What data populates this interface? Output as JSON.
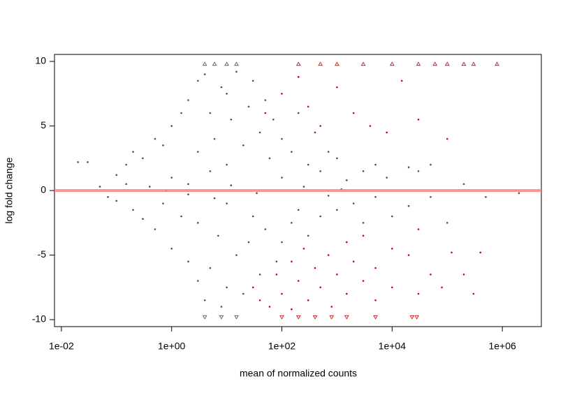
{
  "chart_data": {
    "type": "scatter",
    "x_label": "mean of normalized counts",
    "y_label": "log fold change",
    "xlog": true,
    "xlim": [
      0.0075,
      5100000
    ],
    "ylim": [
      -10.54,
      10.54
    ],
    "xticks": [
      {
        "value": 0.01,
        "label": "1e-02"
      },
      {
        "value": 1,
        "label": "1e+00"
      },
      {
        "value": 100,
        "label": "1e+02"
      },
      {
        "value": 10000,
        "label": "1e+04"
      },
      {
        "value": 1000000,
        "label": "1e+06"
      }
    ],
    "yticks": [
      -10,
      -5,
      0,
      5,
      10
    ],
    "hline": 0,
    "hline_color": "#ff7f7f",
    "series": [
      {
        "color": "#4d4d4d",
        "marker": "dot",
        "x": [
          0.02,
          0.03,
          0.05,
          0.07,
          0.1,
          0.1,
          0.15,
          0.15,
          0.2,
          0.2,
          0.3,
          0.3,
          0.4,
          0.5,
          0.5,
          0.7,
          0.7,
          1,
          1,
          1,
          1.5,
          1.5,
          2,
          2,
          2,
          3,
          3,
          3,
          3,
          4,
          4,
          5,
          5,
          5,
          6,
          7,
          8,
          8,
          10,
          10,
          10,
          10,
          12,
          15,
          15,
          20,
          20,
          25,
          25,
          30,
          30,
          40,
          40,
          50,
          50,
          60,
          70,
          80,
          100,
          100,
          100,
          150,
          150,
          200,
          200,
          300,
          300,
          400,
          500,
          500,
          700,
          1000,
          1000,
          1500,
          2000,
          3000,
          3000,
          5000,
          5000,
          8000,
          10000,
          20000,
          20000,
          30000,
          50000,
          50000,
          100000,
          200000,
          500000,
          2000000,
          0.8,
          2,
          6,
          12,
          35,
          250,
          700,
          1200
        ],
        "values": [
          2.2,
          2.2,
          0.3,
          -0.5,
          1.2,
          -0.8,
          0.5,
          2.0,
          -1.5,
          3.0,
          2.5,
          -2.2,
          0.3,
          4.0,
          -3.0,
          -1.0,
          3.5,
          5.0,
          -4.5,
          1.0,
          -2.0,
          6.0,
          7.0,
          -5.5,
          0.5,
          8.5,
          -7.0,
          3.0,
          -2.5,
          9.0,
          -8.5,
          6.0,
          -6.0,
          1.5,
          4.0,
          -3.5,
          8.0,
          -9.0,
          7.5,
          -7.5,
          2.0,
          -1.0,
          5.5,
          -5.0,
          9.2,
          3.5,
          -8.0,
          6.5,
          -4.0,
          8.5,
          -2.0,
          4.5,
          -6.5,
          7.0,
          -3.0,
          2.5,
          5.5,
          -5.5,
          4.0,
          -4.0,
          1.0,
          3.0,
          -2.5,
          6.0,
          -1.5,
          2.0,
          -3.5,
          4.5,
          1.5,
          -2.0,
          3.0,
          2.5,
          -1.5,
          0.8,
          -1.0,
          1.5,
          -2.5,
          2.0,
          -0.5,
          1.0,
          -2.0,
          1.8,
          -1.2,
          1.5,
          -0.5,
          2.0,
          -2.5,
          0.5,
          -0.5,
          -0.2,
          0.0,
          -0.3,
          -0.6,
          0.4,
          -0.2,
          0.3,
          -0.4,
          0.1
        ]
      },
      {
        "color": "#cc0000",
        "marker": "dot",
        "x": [
          30,
          40,
          50,
          60,
          80,
          100,
          100,
          150,
          150,
          200,
          200,
          250,
          300,
          300,
          400,
          500,
          500,
          700,
          800,
          1000,
          1000,
          1500,
          1500,
          2000,
          2000,
          3000,
          3000,
          4000,
          5000,
          5000,
          8000,
          10000,
          10000,
          15000,
          20000,
          30000,
          30000,
          50000,
          80000,
          100000,
          120000,
          200000,
          300000,
          400000,
          30000
        ],
        "values": [
          -7.5,
          -8.5,
          6.0,
          -9.0,
          -6.5,
          -8.0,
          7.5,
          -5.5,
          -9.2,
          -7.0,
          8.8,
          -4.5,
          -8.5,
          6.5,
          -6.0,
          -7.5,
          5.0,
          -5.0,
          -9.0,
          -6.5,
          8.0,
          -4.0,
          -8.0,
          -5.5,
          6.0,
          -7.0,
          -3.5,
          5.0,
          -6.0,
          -8.5,
          4.5,
          -4.5,
          -7.5,
          8.5,
          -5.0,
          -8.0,
          5.5,
          -6.5,
          -7.5,
          4.0,
          -4.8,
          -6.5,
          -8.0,
          -4.8,
          -3.0
        ]
      },
      {
        "color": "#4d4d4d",
        "marker": "triangle",
        "x": [
          4,
          6,
          10,
          15,
          4,
          8,
          15
        ],
        "values": [
          9.8,
          9.8,
          9.8,
          9.8,
          -9.8,
          -9.8,
          -9.8
        ]
      },
      {
        "color": "#cc0000",
        "marker": "triangle",
        "x": [
          200,
          500,
          1000,
          3000,
          10000,
          30000,
          60000,
          100000,
          200000,
          300000,
          800000,
          100,
          200,
          400,
          800,
          1500,
          5000,
          23000,
          28000
        ],
        "values": [
          9.8,
          9.8,
          9.8,
          9.8,
          9.8,
          9.8,
          9.8,
          9.8,
          9.8,
          9.8,
          9.8,
          -9.8,
          -9.8,
          -9.8,
          -9.8,
          -9.8,
          -9.8,
          -9.8,
          -9.8
        ]
      }
    ]
  }
}
